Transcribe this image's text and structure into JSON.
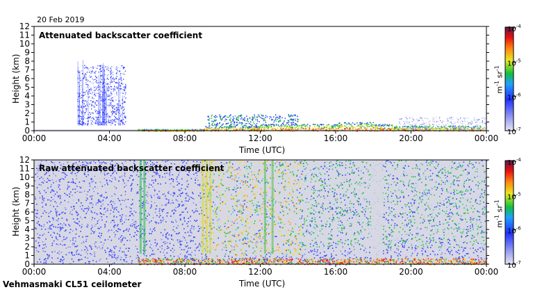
{
  "date": "20 Feb 2019",
  "footer": "Vehmasmaki CL51 ceilometer",
  "chart_data": [
    {
      "type": "heatmap",
      "title": "Attenuated backscatter coefficient",
      "xlabel": "Time (UTC)",
      "ylabel": "Height (km)",
      "x_ticks": [
        "00:00",
        "04:00",
        "08:00",
        "12:00",
        "16:00",
        "20:00",
        "00:00"
      ],
      "y_ticks": [
        "0",
        "1",
        "2",
        "3",
        "4",
        "5",
        "6",
        "7",
        "8",
        "9",
        "10",
        "11",
        "12"
      ],
      "xlim_hours": [
        0,
        24
      ],
      "ylim_km": [
        0,
        12
      ],
      "colorbar": {
        "ticks": [
          "10",
          "10",
          "10",
          "10"
        ],
        "exponents": [
          "-4",
          "-5",
          "-6",
          "-7"
        ],
        "unit": "m",
        "unit_exp": "-1",
        "unit2": "sr",
        "unit2_exp": "-1"
      }
    },
    {
      "type": "heatmap",
      "title": "Raw attenuated backscatter coefficient",
      "xlabel": "Time (UTC)",
      "ylabel": "Height (km)",
      "x_ticks": [
        "00:00",
        "04:00",
        "08:00",
        "12:00",
        "16:00",
        "20:00",
        "00:00"
      ],
      "y_ticks": [
        "0",
        "1",
        "2",
        "3",
        "4",
        "5",
        "6",
        "7",
        "8",
        "9",
        "10",
        "11",
        "12"
      ],
      "xlim_hours": [
        0,
        24
      ],
      "ylim_km": [
        0,
        12
      ],
      "colorbar": {
        "ticks": [
          "10",
          "10",
          "10",
          "10"
        ],
        "exponents": [
          "-4",
          "-5",
          "-6",
          "-7"
        ],
        "unit": "m",
        "unit_exp": "-1",
        "unit2": "sr",
        "unit2_exp": "-1"
      }
    }
  ],
  "colors": {
    "low": "#dcdcec",
    "blue": "#3040ff",
    "green": "#20c040",
    "yellow": "#f0e020",
    "red": "#e82010",
    "high": "#6a1a50"
  }
}
